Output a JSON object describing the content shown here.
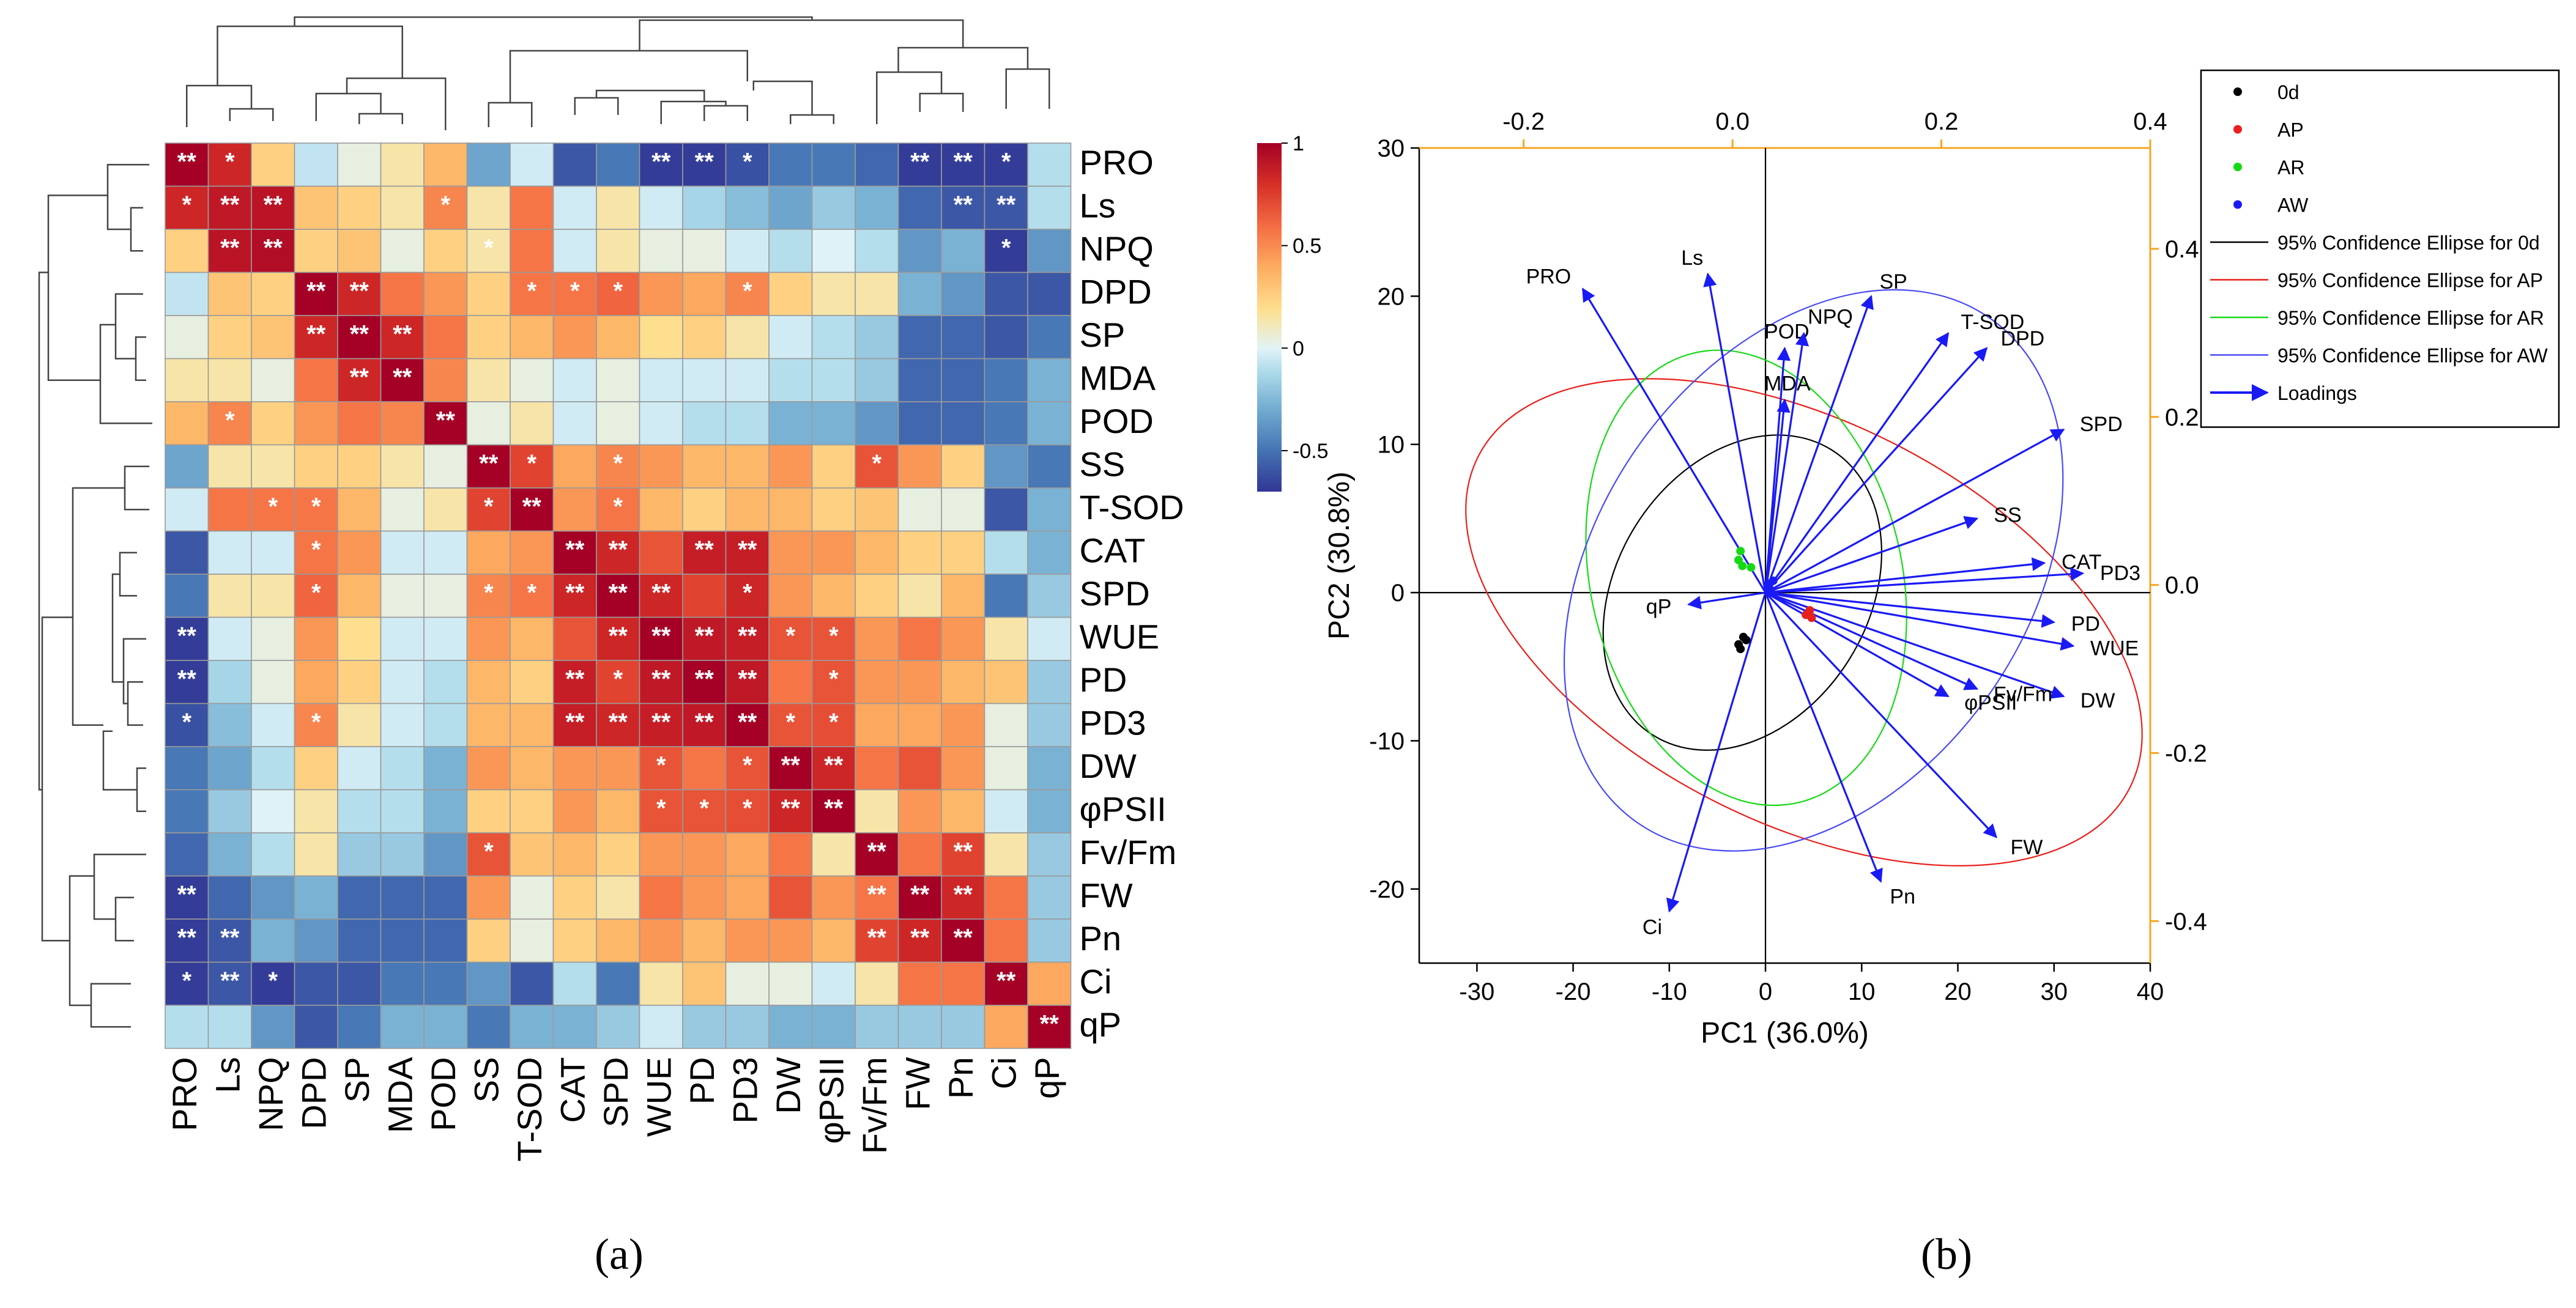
{
  "panel_a": {
    "caption": "(a)",
    "chart_data": {
      "type": "heatmap",
      "title": "",
      "variables": [
        "PRO",
        "Ls",
        "NPQ",
        "DPD",
        "SP",
        "MDA",
        "POD",
        "SS",
        "T-SOD",
        "CAT",
        "SPD",
        "WUE",
        "PD",
        "PD3",
        "DW",
        "φPSII",
        "Fv/Fm",
        "FW",
        "Pn",
        "Ci",
        "qP"
      ],
      "colorbar": {
        "range": [
          -0.7,
          1
        ],
        "ticks": [
          1,
          0.5,
          0,
          -0.5
        ],
        "tick_labels": [
          "1",
          "0.5",
          "0",
          "-0.5"
        ]
      },
      "colorscale": [
        "#313695",
        "#4575b4",
        "#74add1",
        "#abd9e9",
        "#e0f3f8",
        "#fee090",
        "#fdae61",
        "#f46d43",
        "#d73027",
        "#a50026"
      ],
      "upper_triangle": [
        [
          1.0,
          0.85,
          0.3,
          -0.05,
          0.1,
          0.2,
          0.4,
          -0.35,
          0.0,
          -0.6,
          -0.5,
          -0.68,
          -0.68,
          -0.62,
          -0.5,
          -0.5,
          -0.55,
          -0.68,
          -0.68,
          -0.68,
          -0.1
        ],
        [
          0.9,
          0.92,
          0.35,
          0.3,
          0.2,
          0.55,
          0.2,
          0.6,
          0.0,
          0.2,
          0.0,
          -0.15,
          -0.25,
          -0.35,
          -0.2,
          -0.3,
          -0.55,
          -0.6,
          -0.6,
          -0.1
        ],
        [
          0.95,
          0.3,
          0.35,
          0.1,
          0.3,
          0.2,
          0.6,
          0.0,
          0.2,
          0.1,
          0.1,
          0.0,
          -0.1,
          0.05,
          -0.1,
          -0.4,
          -0.3,
          -0.68,
          -0.4
        ],
        [
          1.0,
          0.85,
          0.6,
          0.5,
          0.3,
          0.6,
          0.6,
          0.65,
          0.5,
          0.45,
          0.55,
          0.3,
          0.2,
          0.2,
          -0.3,
          -0.4,
          -0.6,
          -0.6
        ],
        [
          1.0,
          0.85,
          0.6,
          0.3,
          0.4,
          0.5,
          0.4,
          0.25,
          0.3,
          0.2,
          0.0,
          -0.1,
          -0.2,
          -0.55,
          -0.55,
          -0.6,
          -0.5
        ],
        [
          1.0,
          0.55,
          0.2,
          0.1,
          0.0,
          0.1,
          0.0,
          0.0,
          0.0,
          -0.1,
          -0.1,
          -0.2,
          -0.55,
          -0.55,
          -0.5,
          -0.3
        ],
        [
          1.0,
          0.1,
          0.2,
          0.0,
          0.1,
          0.0,
          -0.1,
          -0.1,
          -0.3,
          -0.3,
          -0.4,
          -0.55,
          -0.55,
          -0.5,
          -0.3
        ],
        [
          1.0,
          0.75,
          0.45,
          0.55,
          0.5,
          0.4,
          0.4,
          0.5,
          0.3,
          0.7,
          0.5,
          0.3,
          -0.4,
          -0.5
        ],
        [
          1.0,
          0.5,
          0.6,
          0.4,
          0.3,
          0.4,
          0.4,
          0.3,
          0.35,
          0.1,
          0.1,
          -0.6,
          -0.3
        ],
        [
          1.0,
          0.85,
          0.7,
          0.88,
          0.88,
          0.5,
          0.5,
          0.4,
          0.3,
          0.3,
          -0.1,
          -0.3
        ],
        [
          1.0,
          0.85,
          0.75,
          0.85,
          0.5,
          0.4,
          0.3,
          0.2,
          0.4,
          -0.5,
          -0.2
        ],
        [
          1.0,
          0.9,
          0.88,
          0.7,
          0.7,
          0.5,
          0.6,
          0.5,
          0.2,
          0.0
        ],
        [
          1.0,
          0.9,
          0.6,
          0.7,
          0.5,
          0.5,
          0.4,
          0.35,
          -0.2
        ],
        [
          1.0,
          0.7,
          0.72,
          0.45,
          0.45,
          0.5,
          0.1,
          -0.2
        ],
        [
          1.0,
          0.85,
          0.6,
          0.7,
          0.5,
          0.1,
          -0.3
        ],
        [
          1.0,
          0.2,
          0.5,
          0.4,
          0.0,
          -0.3
        ],
        [
          1.0,
          0.6,
          0.75,
          0.2,
          -0.2
        ],
        [
          1.0,
          0.85,
          0.6,
          -0.2
        ],
        [
          1.0,
          0.6,
          -0.2
        ],
        [
          1.0,
          0.45
        ],
        [
          1.0
        ]
      ],
      "significance_upper": [
        [
          "**",
          "*",
          "",
          "",
          "",
          "",
          "",
          "",
          "",
          "",
          "",
          "**",
          "**",
          "*",
          "",
          "",
          "",
          "**",
          "**",
          "*",
          ""
        ],
        [
          "**",
          "**",
          "",
          "",
          "",
          "*",
          "",
          "",
          "",
          "",
          "",
          "",
          "",
          "",
          "",
          "",
          "",
          "**",
          "**",
          ""
        ],
        [
          "**",
          "",
          "",
          "",
          "",
          "*",
          "",
          "",
          "",
          "",
          "",
          "",
          "",
          "",
          "",
          "",
          "",
          "*",
          ""
        ],
        [
          "**",
          "**",
          "",
          "",
          "",
          "*",
          "*",
          "*",
          "",
          "",
          "*",
          "",
          "",
          "",
          "",
          "",
          "",
          ""
        ],
        [
          "**",
          "**",
          "",
          "",
          "",
          "",
          "",
          "",
          "",
          "",
          "",
          "",
          "",
          "",
          "",
          "",
          ""
        ],
        [
          "**",
          "",
          "",
          "",
          "",
          "",
          "",
          "",
          "",
          "",
          "",
          "",
          "",
          "",
          "",
          ""
        ],
        [
          "**",
          "",
          "",
          "",
          "",
          "",
          "",
          "",
          "",
          "",
          "",
          "",
          "",
          "",
          ""
        ],
        [
          "**",
          "*",
          "",
          "*",
          "",
          "",
          "",
          "",
          "",
          "*",
          "",
          "",
          "",
          ""
        ],
        [
          "**",
          "",
          "*",
          "",
          "",
          "",
          "",
          "",
          "",
          "",
          "",
          "",
          ""
        ],
        [
          "**",
          "**",
          "",
          "**",
          "**",
          "",
          "",
          "",
          "",
          "",
          "",
          ""
        ],
        [
          "**",
          "**",
          "",
          "*",
          "",
          "",
          "",
          "",
          "",
          "",
          ""
        ],
        [
          "**",
          "**",
          "**",
          "*",
          "*",
          "",
          "",
          "",
          "",
          ""
        ],
        [
          "**",
          "**",
          "",
          "*",
          "",
          "",
          "",
          "",
          ""
        ],
        [
          "**",
          "*",
          "*",
          "",
          "",
          "",
          "",
          ""
        ],
        [
          "**",
          "**",
          "",
          "",
          "",
          "",
          ""
        ],
        [
          "**",
          "",
          "",
          "",
          "",
          ""
        ],
        [
          "**",
          "",
          "**",
          "",
          ""
        ],
        [
          "**",
          "**",
          "",
          ""
        ],
        [
          "**",
          "",
          ""
        ],
        [
          "**",
          ""
        ],
        [
          "**"
        ]
      ],
      "significance_lower": {
        "1": {
          "0": "*"
        },
        "2": {
          "1": "**"
        },
        "4": {
          "3": "**"
        },
        "5": {
          "4": "**"
        },
        "6": {
          "1": "*"
        },
        "7": {},
        "8": {
          "2": "*",
          "3": "*",
          "7": "*"
        },
        "9": {
          "3": "*"
        },
        "10": {
          "3": "*",
          "7": "*",
          "8": "*",
          "9": "**"
        },
        "11": {
          "0": "**",
          "10": "**"
        },
        "12": {
          "0": "**",
          "9": "**",
          "10": "*",
          "11": "**"
        },
        "13": {
          "0": "*",
          "3": "*",
          "9": "**",
          "10": "**",
          "11": "**",
          "12": "**"
        },
        "14": {
          "11": "*",
          "13": "*"
        },
        "15": {
          "11": "*",
          "12": "*",
          "13": "*",
          "14": "**"
        },
        "16": {
          "7": "*"
        },
        "17": {
          "0": "**",
          "16": "**"
        },
        "18": {
          "0": "**",
          "1": "**",
          "16": "**",
          "17": "**"
        },
        "19": {
          "0": "*",
          "1": "**",
          "2": "*"
        }
      }
    }
  },
  "panel_b": {
    "caption": "(b)",
    "chart_data": {
      "type": "scatter",
      "title": "",
      "xlabel": "PC1 (36.0%)",
      "ylabel": "PC2 (30.8%)",
      "xlim": [
        -36,
        40
      ],
      "ylim": [
        -25,
        30
      ],
      "xticks": [
        -30,
        -20,
        -10,
        0,
        10,
        20,
        30,
        40
      ],
      "yticks": [
        -20,
        -10,
        0,
        10,
        20,
        30
      ],
      "top_axis": {
        "range": [
          -0.3,
          0.4
        ],
        "ticks": [
          -0.2,
          0.0,
          0.2,
          0.4
        ],
        "tick_labels": [
          "-0.2",
          "0.0",
          "0.2",
          "0.4"
        ]
      },
      "right_axis": {
        "range": [
          -0.45,
          0.52
        ],
        "ticks": [
          0.4,
          0.2,
          0.0,
          -0.2,
          -0.4
        ],
        "tick_labels": [
          "0.4",
          "0.2",
          "0.0",
          "-0.2",
          "-0.4"
        ]
      },
      "axis_accent_color": "#f5a623",
      "groups": [
        {
          "name": "0d",
          "color": "#000000",
          "points": [
            [
              -2.8,
              -3.5
            ],
            [
              -2.3,
              -3.0
            ],
            [
              -2.6,
              -3.8
            ],
            [
              -2.0,
              -3.2
            ]
          ]
        },
        {
          "name": "AP",
          "color": "#e8201c",
          "points": [
            [
              4.2,
              -1.5
            ],
            [
              4.6,
              -1.2
            ],
            [
              4.8,
              -1.7
            ]
          ]
        },
        {
          "name": "AR",
          "color": "#16d916",
          "points": [
            [
              -2.6,
              2.8
            ],
            [
              -2.4,
              1.8
            ],
            [
              -1.5,
              1.7
            ],
            [
              -2.8,
              2.2
            ]
          ]
        },
        {
          "name": "AW",
          "color": "#1a1af5",
          "points": [
            [
              0.3,
              0.6
            ],
            [
              0.5,
              0.2
            ],
            [
              0.8,
              0.8
            ]
          ]
        }
      ],
      "ellipses": [
        {
          "name": "95% Confidence Ellipse for 0d",
          "color": "#000000",
          "cx": -2.4,
          "cy": 0.0,
          "rx": 17.5,
          "ry": 8.5,
          "angle": 58
        },
        {
          "name": "95% Confidence Ellipse for AP",
          "color": "#e8201c",
          "cx": 4.0,
          "cy": -2.0,
          "rx": 38.0,
          "ry": 13.5,
          "angle": -27
        },
        {
          "name": "95% Confidence Ellipse for AR",
          "color": "#16d916",
          "cx": -2.0,
          "cy": 1.0,
          "rx": 24.0,
          "ry": 10.5,
          "angle": -77
        },
        {
          "name": "95% Confidence Ellipse for AW",
          "color": "#4a4af5",
          "cx": 5.0,
          "cy": 1.5,
          "rx": 32.0,
          "ry": 14.5,
          "angle": 55
        }
      ],
      "loadings": [
        {
          "label": "PRO",
          "x": -19,
          "y": 20.5
        },
        {
          "label": "Ls",
          "x": -6,
          "y": 21.5
        },
        {
          "label": "POD",
          "x": 2,
          "y": 16.5
        },
        {
          "label": "MDA",
          "x": 2,
          "y": 13
        },
        {
          "label": "NPQ",
          "x": 4,
          "y": 17.5
        },
        {
          "label": "SP",
          "x": 11,
          "y": 20
        },
        {
          "label": "T-SOD",
          "x": 19,
          "y": 17.5
        },
        {
          "label": "DPD",
          "x": 23,
          "y": 16.5
        },
        {
          "label": "SPD",
          "x": 31,
          "y": 11
        },
        {
          "label": "SS",
          "x": 22,
          "y": 5
        },
        {
          "label": "CAT",
          "x": 29,
          "y": 2
        },
        {
          "label": "PD3",
          "x": 33,
          "y": 1.3
        },
        {
          "label": "PD",
          "x": 30,
          "y": -2
        },
        {
          "label": "WUE",
          "x": 32,
          "y": -3.6
        },
        {
          "label": "DW",
          "x": 31,
          "y": -7
        },
        {
          "label": "Fv/Fm",
          "x": 22,
          "y": -6.5
        },
        {
          "label": "φPSII",
          "x": 19,
          "y": -7
        },
        {
          "label": "FW",
          "x": 24,
          "y": -16.5
        },
        {
          "label": "Pn",
          "x": 12,
          "y": -19.5
        },
        {
          "label": "Ci",
          "x": -10,
          "y": -21.5
        },
        {
          "label": "qP",
          "x": -8,
          "y": -0.8
        }
      ],
      "legend": {
        "position": "right",
        "entries": [
          {
            "label": "0d",
            "kind": "dot",
            "color": "#000000"
          },
          {
            "label": "AP",
            "kind": "dot",
            "color": "#e8201c"
          },
          {
            "label": "AR",
            "kind": "dot",
            "color": "#16d916"
          },
          {
            "label": "AW",
            "kind": "dot",
            "color": "#1a1af5"
          },
          {
            "label": "95% Confidence Ellipse for 0d",
            "kind": "line",
            "color": "#000000"
          },
          {
            "label": "95% Confidence Ellipse for AP",
            "kind": "line",
            "color": "#e8201c"
          },
          {
            "label": "95% Confidence Ellipse for AR",
            "kind": "line",
            "color": "#16d916"
          },
          {
            "label": "95% Confidence Ellipse for AW",
            "kind": "line",
            "color": "#4a4af5"
          },
          {
            "label": "Loadings",
            "kind": "arrow",
            "color": "#1a1af5"
          }
        ]
      }
    }
  }
}
